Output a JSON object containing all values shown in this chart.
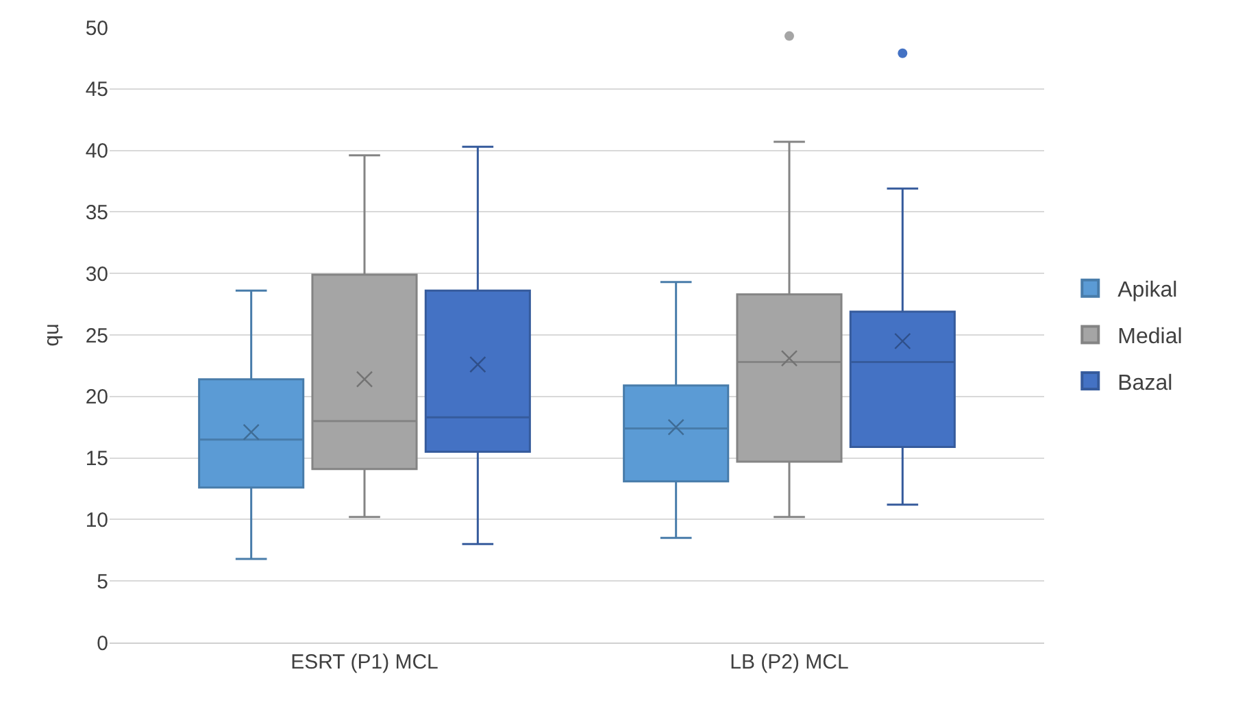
{
  "chart_data": {
    "type": "box",
    "ylabel": "qu",
    "categories": [
      "ESRT (P1) MCL",
      "LB (P2) MCL"
    ],
    "ylim": [
      0,
      50
    ],
    "yticks": [
      0,
      5,
      10,
      15,
      20,
      25,
      30,
      35,
      40,
      45,
      50
    ],
    "grid": "y",
    "legend": "right",
    "marker": "cross",
    "series": [
      {
        "name": "Apikal",
        "color": "#5b9bd5",
        "boxes": [
          {
            "low": 6.8,
            "q1": 12.6,
            "median": 16.5,
            "q3": 21.4,
            "high": 28.6,
            "mean": 17.1
          },
          {
            "low": 8.5,
            "q1": 13.1,
            "median": 17.4,
            "q3": 20.9,
            "high": 29.3,
            "mean": 17.5
          }
        ]
      },
      {
        "name": "Medial",
        "color": "#a5a5a5",
        "boxes": [
          {
            "low": 10.2,
            "q1": 14.1,
            "median": 18.0,
            "q3": 29.9,
            "high": 39.6,
            "mean": 21.4
          },
          {
            "low": 10.2,
            "q1": 14.7,
            "median": 22.8,
            "q3": 28.3,
            "high": 40.7,
            "mean": 23.1,
            "outliers": [
              49.3
            ]
          }
        ]
      },
      {
        "name": "Bazal",
        "color": "#4472c4",
        "boxes": [
          {
            "low": 8.0,
            "q1": 15.5,
            "median": 18.3,
            "q3": 28.6,
            "high": 40.3,
            "mean": 22.6
          },
          {
            "low": 11.2,
            "q1": 15.9,
            "median": 22.8,
            "q3": 26.9,
            "high": 36.9,
            "mean": 24.5,
            "outliers": [
              47.9
            ]
          }
        ]
      }
    ]
  }
}
